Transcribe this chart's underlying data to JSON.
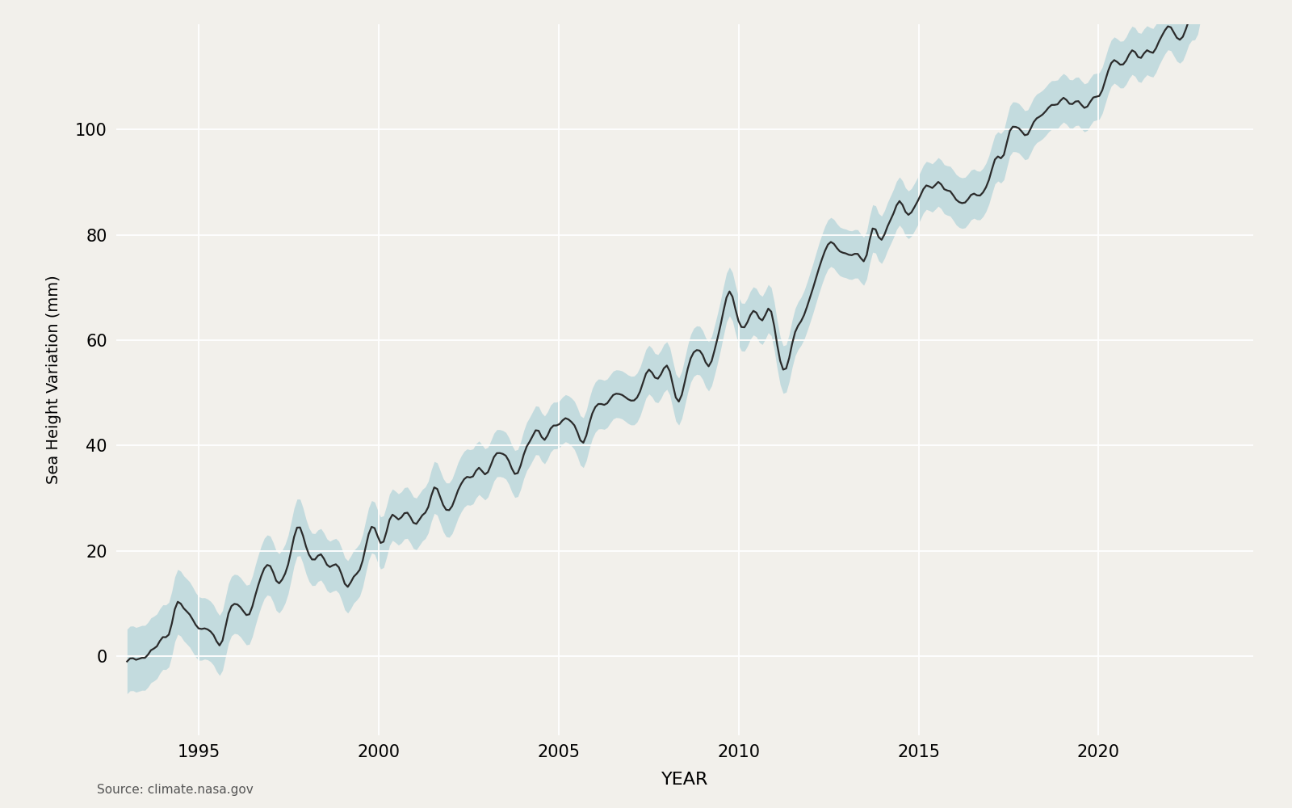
{
  "title": "",
  "xlabel": "YEAR",
  "ylabel": "Sea Height Variation (mm)",
  "source_text": "Source: climate.nasa.gov",
  "line_color": "#2b2b2b",
  "fill_color": "#9ecad4",
  "fill_alpha": 0.55,
  "background_color": "#f2f0eb",
  "grid_color": "#ffffff",
  "ylim": [
    -15,
    120
  ],
  "xlim_start": 1992.7,
  "xlim_end": 2024.3,
  "yticks": [
    0,
    20,
    40,
    60,
    80,
    100
  ],
  "xticks": [
    1995,
    2000,
    2005,
    2010,
    2015,
    2020
  ],
  "line_width": 1.6,
  "tick_labelsize": 15
}
